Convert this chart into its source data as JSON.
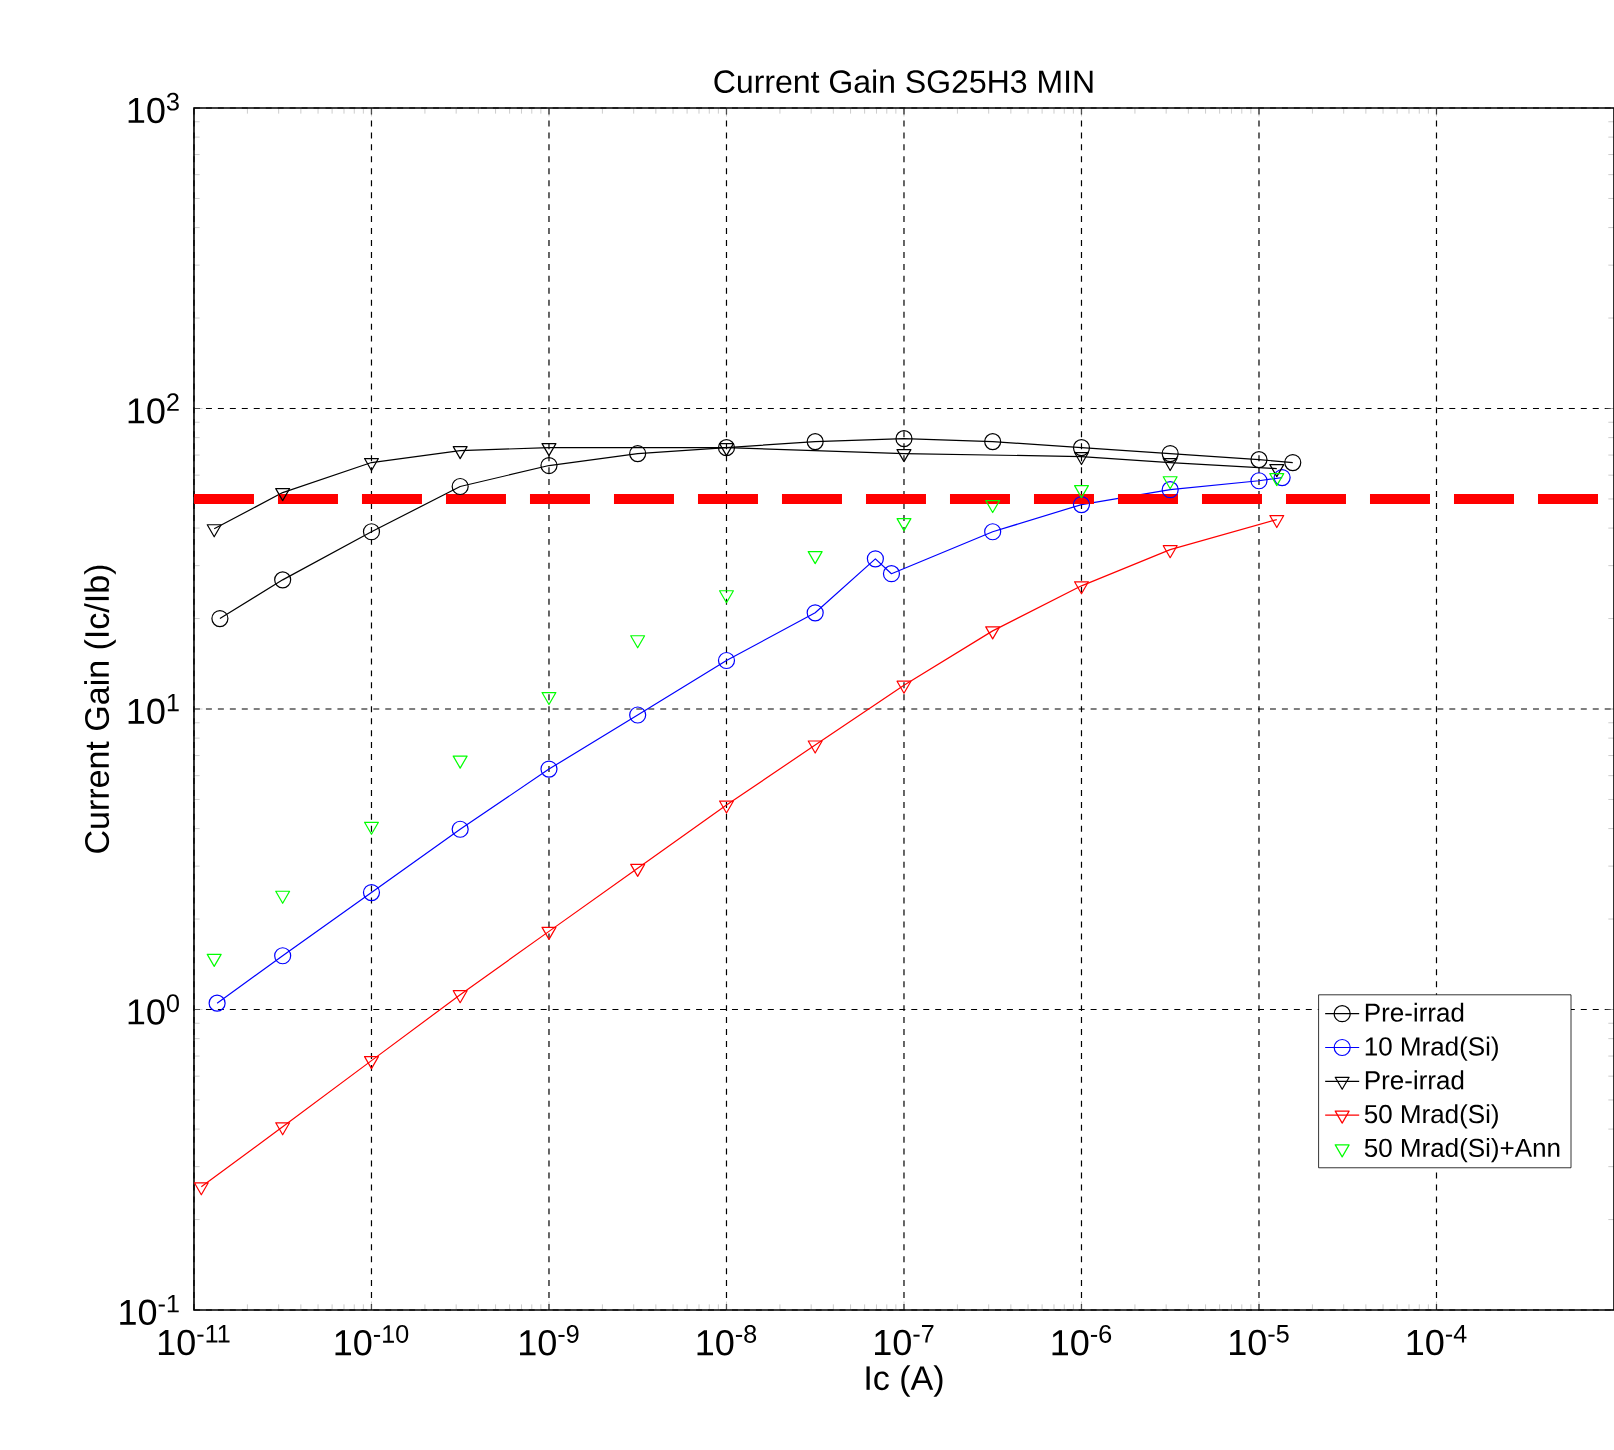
{
  "chart_data": {
    "type": "line",
    "title": "Current Gain SG25H3 MIN",
    "xlabel": "Ic (A)",
    "ylabel": "Current Gain (Ic/Ib)",
    "log": "xy",
    "grid": true,
    "legend": "bottom right",
    "xlim": [
      1e-11,
      0.001
    ],
    "ylim": [
      0.1,
      1000
    ],
    "xticks": [
      {
        "value": 1e-11,
        "label": "10$^{-11}$"
      },
      {
        "value": 1e-10,
        "label": "10$^{-10}$"
      },
      {
        "value": 1e-09,
        "label": "10$^{-9}$"
      },
      {
        "value": 1e-08,
        "label": "10$^{-8}$"
      },
      {
        "value": 1e-07,
        "label": "10$^{-7}$"
      },
      {
        "value": 1e-06,
        "label": "10$^{-6}$"
      },
      {
        "value": 1e-05,
        "label": "10$^{-5}$"
      },
      {
        "value": 0.0001,
        "label": "10$^{-4}$"
      }
    ],
    "yticks": [
      {
        "value": 0.1,
        "label": "10$^{-1}$"
      },
      {
        "value": 1,
        "label": "10$^{0}$"
      },
      {
        "value": 10,
        "label": "10$^{1}$"
      },
      {
        "value": 100,
        "label": "10$^{2}$"
      },
      {
        "value": 1000,
        "label": "10$^{3}$"
      }
    ],
    "series": [
      {
        "name": "Pre-irrad",
        "color": "#000000",
        "marker": "circle",
        "line_style": "solid",
        "x": [
          1.4e-11,
          3.16e-11,
          1e-10,
          3.16e-10,
          1e-09,
          3.16e-09,
          1e-08,
          3.16e-08,
          1e-07,
          3.16e-07,
          1e-06,
          3.16e-06,
          1e-05,
          1.55e-05
        ],
        "values": [
          20.0,
          26.9,
          38.9,
          55.0,
          64.6,
          70.8,
          74.1,
          77.6,
          79.4,
          77.6,
          74.1,
          70.8,
          67.6,
          66.1
        ]
      },
      {
        "name": "10 Mrad(Si)",
        "color": "#0000ff",
        "marker": "circle",
        "line_style": "solid",
        "x": [
          1.35e-11,
          3.16e-11,
          1e-10,
          3.16e-10,
          1e-09,
          3.16e-09,
          1e-08,
          3.16e-08,
          6.9e-08,
          8.5e-08,
          3.16e-07,
          1e-06,
          3.16e-06,
          1e-05,
          1.35e-05
        ],
        "values": [
          1.05,
          1.51,
          2.45,
          3.98,
          6.31,
          9.55,
          14.5,
          20.9,
          31.6,
          28.2,
          38.9,
          47.9,
          53.7,
          57.5,
          58.9
        ]
      },
      {
        "name": "Pre-irrad",
        "color": "#000000",
        "marker": "triangle",
        "line_style": "solid",
        "x": [
          1.3e-11,
          3.16e-11,
          1e-10,
          3.16e-10,
          1e-09,
          1e-08,
          1e-07,
          1e-06,
          3.16e-06,
          1.26e-05
        ],
        "values": [
          39.8,
          52.5,
          66.1,
          72.4,
          74.1,
          74.1,
          70.8,
          69.2,
          66.1,
          63.1
        ]
      },
      {
        "name": "50 Mrad(Si)",
        "color": "#ff0000",
        "marker": "triangle",
        "line_style": "solid",
        "x": [
          1.1e-11,
          3.16e-11,
          1e-10,
          3.16e-10,
          1e-09,
          3.16e-09,
          1e-08,
          3.16e-08,
          1e-07,
          3.16e-07,
          1e-06,
          3.16e-06,
          1.26e-05
        ],
        "values": [
          0.257,
          0.407,
          0.676,
          1.12,
          1.82,
          2.95,
          4.79,
          7.59,
          12.0,
          18.2,
          25.7,
          33.9,
          42.7
        ]
      },
      {
        "name": "50 Mrad(Si)+Ann",
        "type": "scatter",
        "color": "#00ff00",
        "marker": "triangle",
        "x": [
          1.3e-11,
          3.16e-11,
          1e-10,
          3.16e-10,
          1e-09,
          3.16e-09,
          1e-08,
          3.16e-08,
          1e-07,
          3.16e-07,
          1e-06,
          3.16e-06,
          1.26e-05
        ],
        "values": [
          1.48,
          2.4,
          4.07,
          6.76,
          11.0,
          17.0,
          24.0,
          32.4,
          41.7,
          47.9,
          53.7,
          57.5,
          58.9
        ]
      }
    ],
    "ref_lines": [
      {
        "axis": "y",
        "value": 50,
        "color": "#ff0000",
        "line_style": "dashed"
      }
    ]
  }
}
